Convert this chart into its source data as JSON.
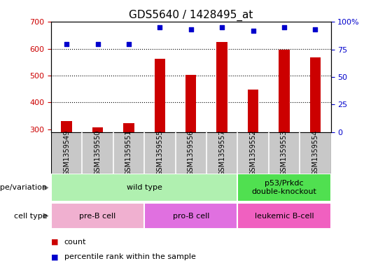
{
  "title": "GDS5640 / 1428495_at",
  "samples": [
    "GSM1359549",
    "GSM1359550",
    "GSM1359551",
    "GSM1359555",
    "GSM1359556",
    "GSM1359557",
    "GSM1359552",
    "GSM1359553",
    "GSM1359554"
  ],
  "counts": [
    330,
    308,
    322,
    563,
    502,
    625,
    447,
    597,
    568
  ],
  "percentiles": [
    80,
    80,
    80,
    95,
    93,
    95,
    92,
    95,
    93
  ],
  "ylim_left": [
    290,
    700
  ],
  "ylim_right": [
    0,
    100
  ],
  "yticks_left": [
    300,
    400,
    500,
    600,
    700
  ],
  "yticks_right": [
    0,
    25,
    50,
    75,
    100
  ],
  "bar_color": "#cc0000",
  "dot_color": "#0000cc",
  "sample_bg_color": "#c8c8c8",
  "genotype_groups": [
    {
      "label": "wild type",
      "span": [
        0,
        5
      ],
      "color": "#b0f0b0"
    },
    {
      "label": "p53/Prkdc\ndouble-knockout",
      "span": [
        6,
        8
      ],
      "color": "#50e050"
    }
  ],
  "cell_type_groups": [
    {
      "label": "pre-B cell",
      "span": [
        0,
        2
      ],
      "color": "#f0b0d0"
    },
    {
      "label": "pro-B cell",
      "span": [
        3,
        5
      ],
      "color": "#e070e0"
    },
    {
      "label": "leukemic B-cell",
      "span": [
        6,
        8
      ],
      "color": "#f060c0"
    }
  ],
  "legend_items": [
    {
      "color": "#cc0000",
      "label": "count"
    },
    {
      "color": "#0000cc",
      "label": "percentile rank within the sample"
    }
  ],
  "title_fontsize": 11,
  "tick_fontsize": 8,
  "label_fontsize": 8,
  "sample_label_fontsize": 7
}
